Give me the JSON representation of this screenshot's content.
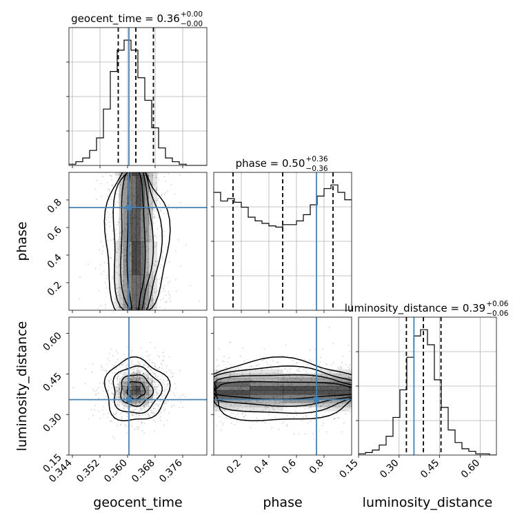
{
  "params": [
    "geocent_time",
    "phase",
    "luminosity_distance"
  ],
  "titles": [
    {
      "name": "geocent_time",
      "value": "0.36",
      "plus": "+0.00",
      "minus": "−0.00"
    },
    {
      "name": "phase",
      "value": "0.50",
      "plus": "+0.36",
      "minus": "−0.36"
    },
    {
      "name": "luminosity_distance",
      "value": "0.39",
      "plus": "+0.06",
      "minus": "−0.06"
    }
  ],
  "colors": {
    "truth": "#4682b4",
    "hist": "#000000",
    "density": "#808080",
    "grid": "#b0b0b0"
  },
  "chart_data": {
    "type": "corner",
    "axes": {
      "geocent_time": {
        "range": [
          0.343,
          0.383
        ],
        "ticks": [
          0.344,
          0.352,
          0.36,
          0.368,
          0.376
        ],
        "tick_labels": [
          "0.344",
          "0.352",
          "0.360",
          "0.368",
          "0.376"
        ]
      },
      "phase": {
        "range": [
          0.0,
          1.0
        ],
        "ticks": [
          0.2,
          0.4,
          0.6,
          0.8
        ],
        "tick_labels": [
          "0.2",
          "0.4",
          "0.6",
          "0.8"
        ]
      },
      "luminosity_distance": {
        "range": [
          0.15,
          0.66
        ],
        "ticks": [
          0.15,
          0.3,
          0.45,
          0.6
        ],
        "tick_labels": [
          "0.15",
          "0.30",
          "0.45",
          "0.60"
        ]
      }
    },
    "truths": {
      "geocent_time": 0.3604,
      "phase": 0.745,
      "luminosity_distance": 0.355
    },
    "quantiles": {
      "geocent_time": [
        0.3573,
        0.3624,
        0.3675
      ],
      "phase": [
        0.14,
        0.5,
        0.865
      ],
      "luminosity_distance": [
        0.327,
        0.39,
        0.455
      ]
    },
    "histograms": {
      "geocent_time": {
        "edges_range": [
          0.343,
          0.383
        ],
        "bins": 20,
        "counts": [
          1,
          3,
          6,
          12,
          22,
          45,
          75,
          92,
          100,
          92,
          70,
          52,
          30,
          14,
          6,
          3,
          1,
          0,
          0,
          0
        ]
      },
      "phase": {
        "edges_range": [
          0.0,
          1.0
        ],
        "bins": 20,
        "counts": [
          95,
          88,
          90,
          87,
          83,
          75,
          72,
          70,
          68,
          67,
          69,
          69,
          72,
          77,
          85,
          92,
          98,
          101,
          95,
          89
        ]
      },
      "luminosity_distance": {
        "edges_range": [
          0.15,
          0.66
        ],
        "bins": 20,
        "counts": [
          1,
          2,
          4,
          8,
          15,
          30,
          52,
          78,
          95,
          100,
          88,
          60,
          38,
          20,
          10,
          5,
          3,
          1,
          1,
          0
        ]
      }
    },
    "title_format": "{name} = {value}^{plus}_{minus}"
  }
}
